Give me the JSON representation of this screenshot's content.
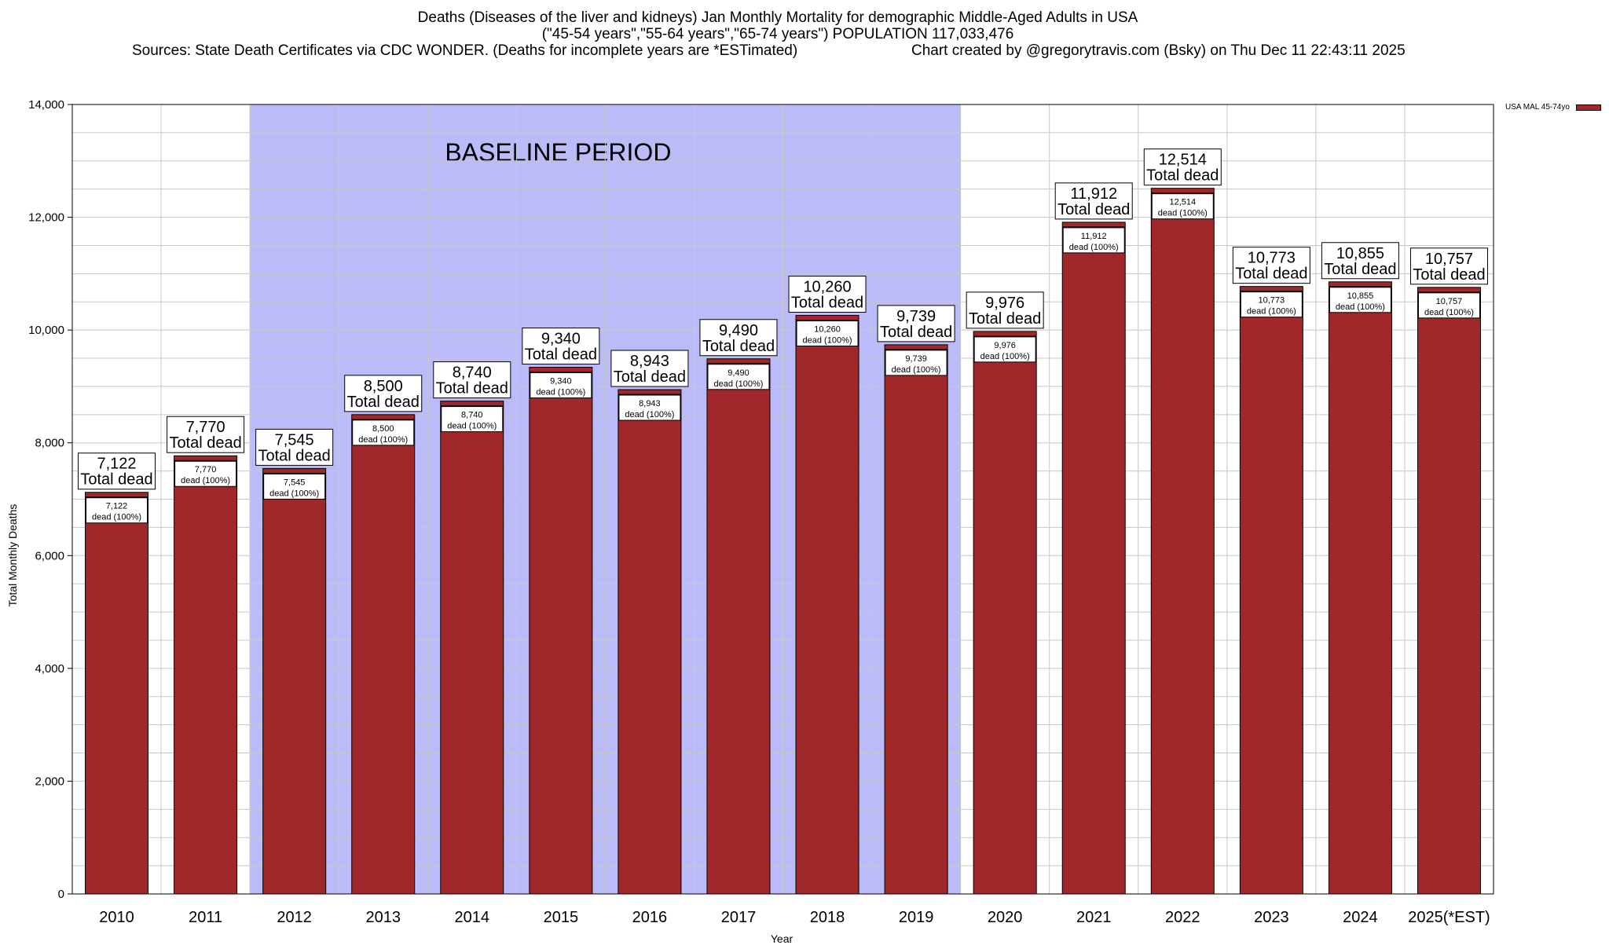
{
  "header": {
    "title_line1": "Deaths (Diseases of the liver and kidneys) Jan Monthly Mortality for demographic Middle-Aged Adults in USA",
    "title_line2": "(\"45-54 years\",\"55-64 years\",\"65-74 years\") POPULATION 117,033,476",
    "sources": "Sources: State Death Certificates via CDC WONDER. (Deaths for incomplete years are *ESTimated)",
    "credit": "Chart created by @gregorytravis.com (Bsky) on Thu Dec 11 22:43:11 2025"
  },
  "colors": {
    "bar": "#a0282b",
    "baseline_shade": "#bbbbfa",
    "grid": "#c8c8c8"
  },
  "chart_data": {
    "type": "bar",
    "categories": [
      "2010",
      "2011",
      "2012",
      "2013",
      "2014",
      "2015",
      "2016",
      "2017",
      "2018",
      "2019",
      "2020",
      "2021",
      "2022",
      "2023",
      "2024",
      "2025(*EST)"
    ],
    "series": [
      {
        "name": "USA MAL 45-74yo",
        "values": [
          7122,
          7770,
          7545,
          8500,
          8740,
          9340,
          8943,
          9490,
          10260,
          9739,
          9976,
          11912,
          12514,
          10773,
          10855,
          10757
        ]
      }
    ],
    "value_labels": [
      "7,122",
      "7,770",
      "7,545",
      "8,500",
      "8,740",
      "9,340",
      "8,943",
      "9,490",
      "10,260",
      "9,739",
      "9,976",
      "11,912",
      "12,514",
      "10,773",
      "10,855",
      "10,757"
    ],
    "label_total_suffix": "Total dead",
    "label_inner_suffix": "dead (100%)",
    "xlabel": "Year",
    "ylabel": "Total Monthly Deaths",
    "ylim": [
      0,
      14000
    ],
    "yticks": [
      0,
      2000,
      4000,
      6000,
      8000,
      10000,
      12000,
      14000
    ],
    "ytick_labels": [
      "0",
      "2,000",
      "4,000",
      "6,000",
      "8,000",
      "10,000",
      "12,000",
      "14,000"
    ],
    "baseline": {
      "label": "BASELINE PERIOD",
      "from": "2012",
      "to": "2019"
    },
    "grid": true,
    "legend_position": "top-right"
  }
}
